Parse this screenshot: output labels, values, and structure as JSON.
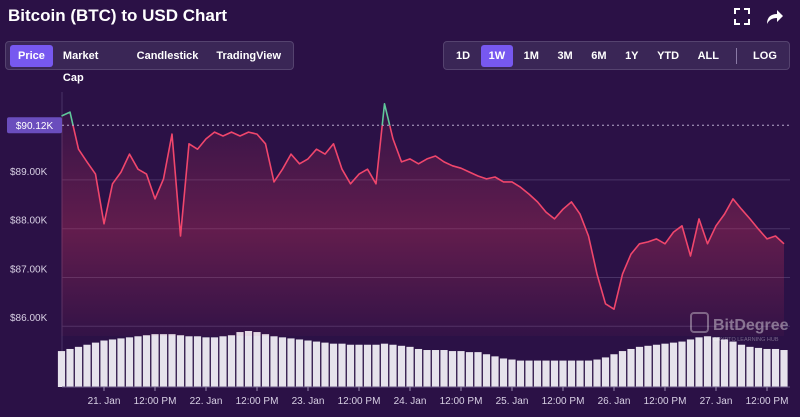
{
  "header": {
    "title": "Bitcoin (BTC) to USD Chart"
  },
  "tabs": [
    "Price",
    "Market Cap",
    "Candlestick",
    "TradingView"
  ],
  "active_tab": 0,
  "ranges": [
    "1D",
    "1W",
    "1M",
    "3M",
    "6M",
    "1Y",
    "YTD",
    "ALL"
  ],
  "active_range": 1,
  "scale_toggle": "LOG",
  "watermark": {
    "name": "BitDegree",
    "tagline": "CRYPTO LEARNING HUB"
  },
  "chart_data": {
    "type": "line",
    "categories": [
      null,
      null,
      null,
      null,
      null,
      "21. Jan",
      null,
      null,
      null,
      null,
      null,
      "12:00 PM",
      null,
      null,
      null,
      null,
      null,
      "22. Jan",
      null,
      null,
      null,
      null,
      null,
      "12:00 PM",
      null,
      null,
      null,
      null,
      null,
      "23. Jan",
      null,
      null,
      null,
      null,
      null,
      "12:00 PM",
      null,
      null,
      null,
      null,
      null,
      "24. Jan",
      null,
      null,
      null,
      null,
      null,
      "12:00 PM",
      null,
      null,
      null,
      null,
      null,
      "25. Jan",
      null,
      null,
      null,
      null,
      null,
      "12:00 PM",
      null,
      null,
      null,
      null,
      null,
      "26. Jan",
      null,
      null,
      null,
      null,
      null,
      "12:00 PM",
      null,
      null,
      null,
      null,
      null,
      "27. Jan",
      null,
      null,
      null,
      null,
      null,
      "12:00 PM",
      null,
      null
    ],
    "values": [
      90310,
      90390,
      89630,
      89370,
      89120,
      88100,
      88920,
      89160,
      89530,
      89220,
      89120,
      88610,
      89020,
      89940,
      87850,
      89740,
      89630,
      89840,
      89980,
      89900,
      89980,
      89900,
      89980,
      89940,
      89740,
      88960,
      89220,
      89530,
      89330,
      89430,
      89630,
      89530,
      89740,
      89220,
      88920,
      89120,
      89220,
      88920,
      90560,
      89840,
      89370,
      89430,
      89330,
      89430,
      89490,
      89370,
      89290,
      89240,
      89160,
      89080,
      89020,
      89060,
      88960,
      88960,
      88850,
      88710,
      88550,
      88340,
      88200,
      88400,
      88550,
      88300,
      87850,
      87070,
      86460,
      86350,
      87070,
      87480,
      87690,
      87730,
      87790,
      87690,
      87930,
      88060,
      87440,
      88200,
      87690,
      88060,
      88300,
      88610,
      88400,
      88200,
      87990,
      87790,
      87850,
      87690
    ],
    "volume": [
      34,
      36,
      38,
      40,
      42,
      44,
      45,
      46,
      47,
      48,
      49,
      50,
      50,
      50,
      49,
      48,
      48,
      47,
      47,
      48,
      49,
      52,
      53,
      52,
      50,
      48,
      47,
      46,
      45,
      44,
      43,
      42,
      41,
      41,
      40,
      40,
      40,
      40,
      41,
      40,
      39,
      38,
      36,
      35,
      35,
      35,
      34,
      34,
      33,
      33,
      31,
      29,
      27,
      26,
      25,
      25,
      25,
      25,
      25,
      25,
      25,
      25,
      25,
      26,
      28,
      31,
      34,
      36,
      38,
      39,
      40,
      41,
      42,
      43,
      45,
      47,
      48,
      47,
      45,
      43,
      40,
      38,
      37,
      36,
      36,
      35
    ],
    "color": "#f0466c",
    "color_above": "#5fc79a",
    "volume_color": "#e6e2ec",
    "current_price": {
      "value": 90120,
      "label": "$90.12K"
    },
    "ylim": [
      85800,
      90700
    ],
    "yticks": [
      {
        "value": 86000,
        "label": "$86.00K"
      },
      {
        "value": 87000,
        "label": "$87.00K"
      },
      {
        "value": 88000,
        "label": "$88.00K"
      },
      {
        "value": 89000,
        "label": "$89.00K"
      }
    ],
    "grid": true
  }
}
